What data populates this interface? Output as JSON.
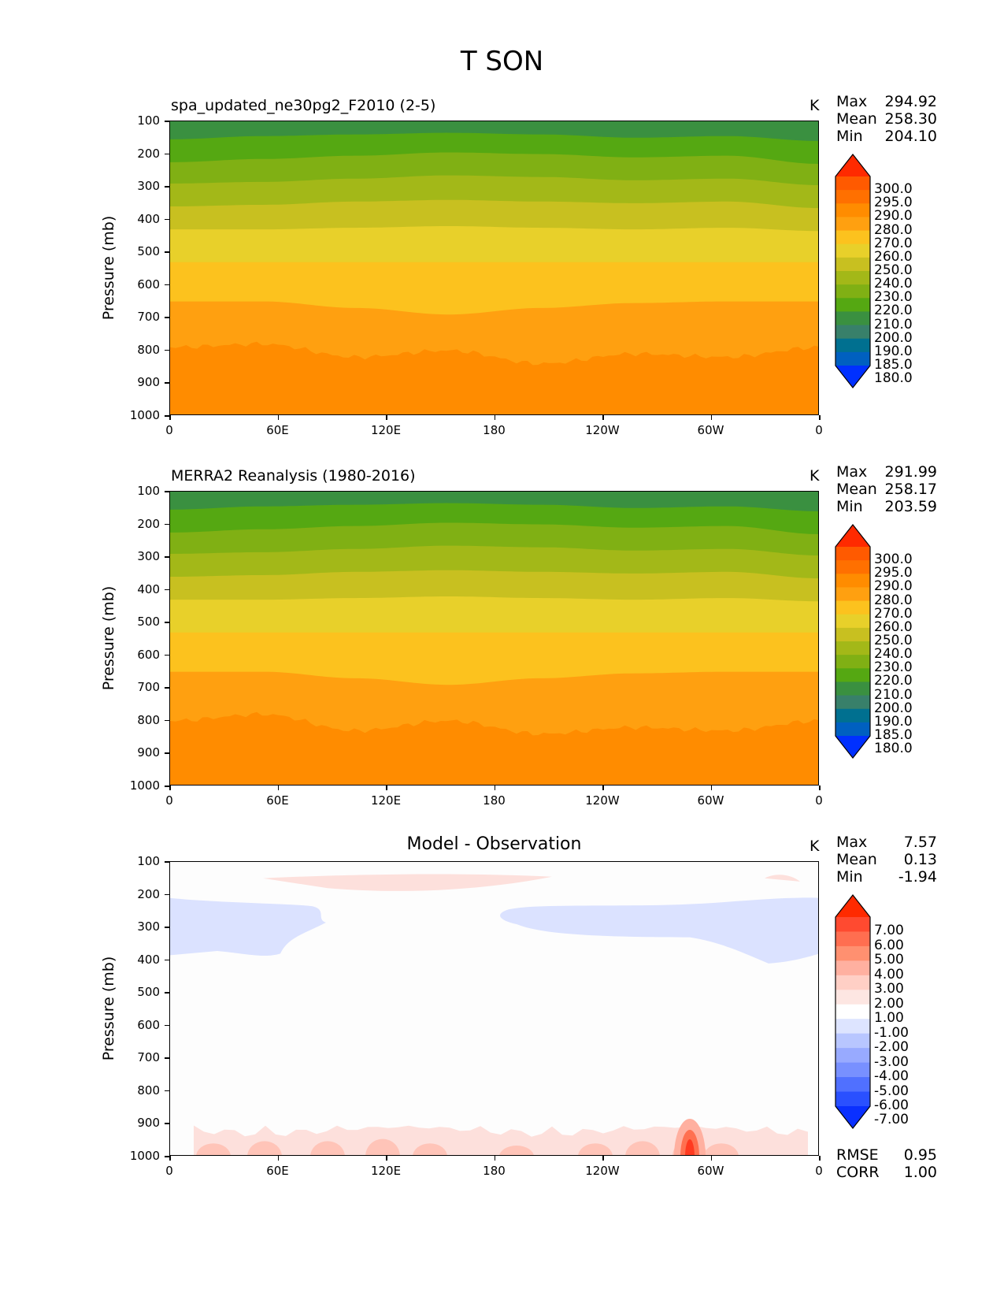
{
  "title": "T SON",
  "axes": {
    "y_label": "Pressure (mb)",
    "y_ticks": [
      "100",
      "200",
      "300",
      "400",
      "500",
      "600",
      "700",
      "800",
      "900",
      "1000"
    ],
    "x_ticks": [
      "0",
      "60E",
      "120E",
      "180",
      "120W",
      "60W",
      "0"
    ],
    "units": "K"
  },
  "panels": [
    {
      "title": "spa_updated_ne30pg2_F2010 (2-5)",
      "stats": [
        {
          "label": "Max",
          "value": "294.92"
        },
        {
          "label": "Mean",
          "value": "258.30"
        },
        {
          "label": "Min",
          "value": "204.10"
        }
      ],
      "colorbar": [
        "300.0",
        "295.0",
        "290.0",
        "280.0",
        "270.0",
        "260.0",
        "250.0",
        "240.0",
        "230.0",
        "220.0",
        "210.0",
        "200.0",
        "190.0",
        "185.0",
        "180.0"
      ]
    },
    {
      "title": "MERRA2 Reanalysis (1980-2016)",
      "stats": [
        {
          "label": "Max",
          "value": "291.99"
        },
        {
          "label": "Mean",
          "value": "258.17"
        },
        {
          "label": "Min",
          "value": "203.59"
        }
      ],
      "colorbar": [
        "300.0",
        "295.0",
        "290.0",
        "280.0",
        "270.0",
        "260.0",
        "250.0",
        "240.0",
        "230.0",
        "220.0",
        "210.0",
        "200.0",
        "190.0",
        "185.0",
        "180.0"
      ]
    },
    {
      "title": "Model - Observation",
      "stats": [
        {
          "label": "Max",
          "value": "7.57"
        },
        {
          "label": "Mean",
          "value": "0.13"
        },
        {
          "label": "Min",
          "value": "-1.94"
        }
      ],
      "colorbar": [
        "7.00",
        "6.00",
        "5.00",
        "4.00",
        "3.00",
        "2.00",
        "1.00",
        "-1.00",
        "-2.00",
        "-3.00",
        "-4.00",
        "-5.00",
        "-6.00",
        "-7.00"
      ],
      "metrics": [
        {
          "label": "RMSE",
          "value": "0.95"
        },
        {
          "label": "CORR",
          "value": "1.00"
        }
      ]
    }
  ],
  "colors": {
    "temp_bands_top_to_bottom": [
      "#ff2a00",
      "#ff5a00",
      "#ff7000",
      "#ff8c00",
      "#ffa010",
      "#fcc21e",
      "#e8d02a",
      "#c8c020",
      "#a3b818",
      "#80b014",
      "#55a812",
      "#3a9040",
      "#38806a",
      "#007090",
      "#0060c0",
      "#0030ff"
    ],
    "diff_bands_top_to_bottom": [
      "#ff2a00",
      "#ff4a30",
      "#ff6e50",
      "#ff9070",
      "#ffb0a0",
      "#ffcfc5",
      "#fde6e2",
      "#ffffff",
      "#dde4ff",
      "#b8c6ff",
      "#98aaff",
      "#7890ff",
      "#5070ff",
      "#2a50ff",
      "#0a30ff"
    ]
  },
  "chart_data": [
    {
      "type": "heatmap",
      "title": "spa_updated_ne30pg2_F2010 (2-5)",
      "ylabel": "Pressure (mb)",
      "x": [
        "0",
        "60E",
        "120E",
        "180",
        "120W",
        "60W",
        "0"
      ],
      "ylim": [
        1000,
        100
      ],
      "units": "K",
      "band_tops_pressure": {
        "210-220": [
          155,
          145,
          140,
          135,
          140,
          150,
          145,
          160
        ],
        "220-230": [
          225,
          215,
          205,
          195,
          200,
          210,
          205,
          230
        ],
        "230-240": [
          290,
          285,
          275,
          265,
          270,
          280,
          275,
          295
        ],
        "240-250": [
          360,
          355,
          345,
          340,
          345,
          350,
          345,
          365
        ],
        "250-260": [
          430,
          430,
          425,
          420,
          425,
          430,
          425,
          435
        ],
        "260-270": [
          530,
          530,
          530,
          530,
          530,
          530,
          530,
          530
        ],
        "270-280": [
          650,
          650,
          670,
          690,
          670,
          655,
          650,
          650
        ],
        "280-290": [
          790,
          780,
          820,
          800,
          840,
          810,
          820,
          790
        ]
      }
    },
    {
      "type": "heatmap",
      "title": "MERRA2 Reanalysis (1980-2016)",
      "ylabel": "Pressure (mb)",
      "x": [
        "0",
        "60E",
        "120E",
        "180",
        "120W",
        "60W",
        "0"
      ],
      "ylim": [
        1000,
        100
      ],
      "units": "K",
      "band_tops_pressure": {
        "210-220": [
          155,
          145,
          140,
          135,
          140,
          150,
          145,
          160
        ],
        "220-230": [
          225,
          215,
          205,
          195,
          200,
          210,
          205,
          230
        ],
        "230-240": [
          290,
          285,
          275,
          265,
          270,
          280,
          275,
          295
        ],
        "240-250": [
          360,
          355,
          345,
          340,
          345,
          350,
          345,
          365
        ],
        "250-260": [
          430,
          430,
          425,
          420,
          425,
          430,
          425,
          435
        ],
        "260-270": [
          530,
          530,
          530,
          530,
          530,
          530,
          530,
          530
        ],
        "270-280": [
          650,
          650,
          670,
          690,
          670,
          655,
          650,
          650
        ],
        "280-290": [
          800,
          780,
          830,
          800,
          840,
          820,
          830,
          800
        ]
      }
    },
    {
      "type": "heatmap",
      "title": "Model - Observation",
      "ylabel": "Pressure (mb)",
      "x": [
        "0",
        "60E",
        "120E",
        "180",
        "120W",
        "60W",
        "0"
      ],
      "ylim": [
        1000,
        100
      ],
      "units": "K",
      "summary": {
        "max": 7.57,
        "mean": 0.13,
        "min": -1.94,
        "rmse": 0.95,
        "corr": 1.0
      }
    }
  ]
}
